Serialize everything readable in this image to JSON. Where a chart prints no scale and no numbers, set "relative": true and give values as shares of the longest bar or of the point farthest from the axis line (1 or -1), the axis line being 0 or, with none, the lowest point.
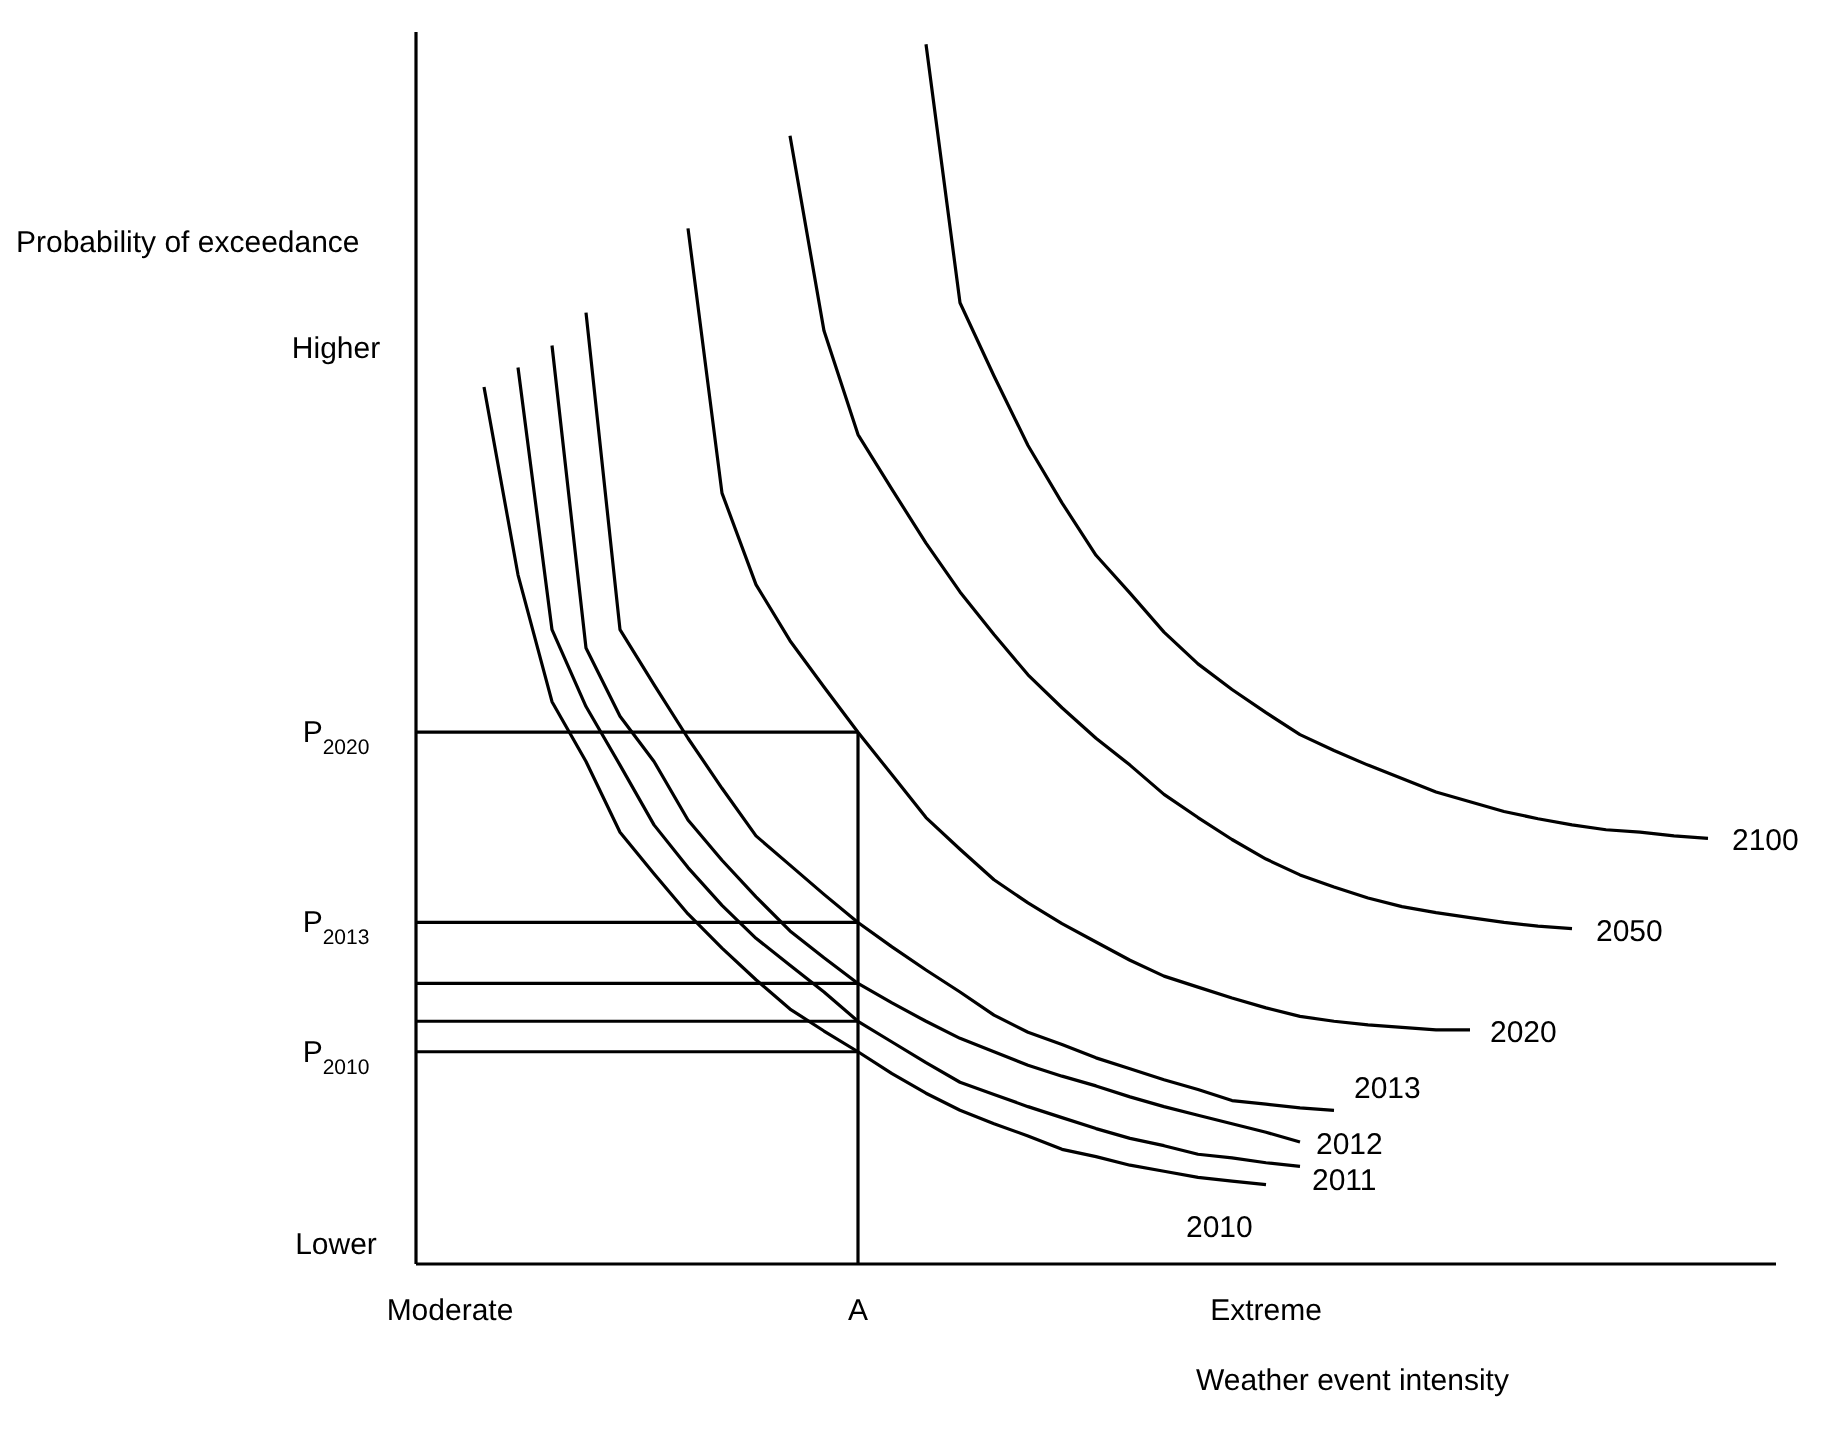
{
  "chart_data": {
    "type": "line",
    "relative": true,
    "xlabel": "Weather event intensity",
    "ylabel": "Probability of exceedance",
    "annotations": [
      "Higher",
      "Lower"
    ],
    "categories": [
      null,
      "Moderate",
      null,
      null,
      null,
      null,
      null,
      null,
      null,
      null,
      null,
      null,
      null,
      "A",
      null,
      null,
      null,
      null,
      null,
      null,
      null,
      null,
      null,
      null,
      null,
      "Extreme",
      null,
      null,
      null,
      null,
      null,
      null,
      null,
      null,
      null,
      null,
      null,
      null,
      null,
      null,
      null
    ],
    "marker": "none",
    "line_style": "solid",
    "ref_lines": [
      {
        "axis": "x",
        "value": "A",
        "color": "#000000"
      },
      {
        "axis": "y",
        "value": 0.436,
        "label": "P$_{2020}$",
        "color": "#000000"
      },
      {
        "axis": "y",
        "value": 0.28,
        "label": "P$_{2013}$",
        "color": "#000000"
      },
      {
        "axis": "y",
        "value": 0.23,
        "color": "#000000"
      },
      {
        "axis": "y",
        "value": 0.199,
        "color": "#000000"
      },
      {
        "axis": "y",
        "value": 0.174,
        "label": "P$_{2010}$",
        "color": "#000000"
      }
    ],
    "series": [
      {
        "name": "2010",
        "color": "#000000",
        "values": [
          null,
          null,
          0.719,
          0.565,
          0.461,
          0.412,
          0.354,
          0.32,
          0.287,
          0.259,
          0.233,
          0.209,
          0.191,
          0.174,
          0.156,
          0.14,
          0.126,
          0.115,
          0.105,
          0.094,
          0.088,
          0.081,
          0.076,
          0.071,
          0.068,
          0.065,
          null,
          null,
          null,
          null,
          null,
          null,
          null,
          null,
          null,
          null,
          null,
          null,
          null,
          null,
          null
        ]
      },
      {
        "name": "2011",
        "color": "#000000",
        "values": [
          null,
          null,
          null,
          0.735,
          0.52,
          0.457,
          0.409,
          0.36,
          0.325,
          0.294,
          0.267,
          0.245,
          0.223,
          0.199,
          0.182,
          0.165,
          0.149,
          0.139,
          0.129,
          0.12,
          0.111,
          0.103,
          0.097,
          0.09,
          0.087,
          0.083,
          0.08,
          null,
          null,
          null,
          null,
          null,
          null,
          null,
          null,
          null,
          null,
          null,
          null,
          null,
          null
        ]
      },
      {
        "name": "2012",
        "color": "#000000",
        "values": [
          null,
          null,
          null,
          null,
          0.753,
          0.505,
          0.449,
          0.412,
          0.364,
          0.331,
          0.301,
          0.273,
          0.251,
          0.23,
          0.214,
          0.199,
          0.185,
          0.174,
          0.163,
          0.154,
          0.146,
          0.137,
          0.129,
          0.122,
          0.115,
          0.108,
          0.1,
          null,
          null,
          null,
          null,
          null,
          null,
          null,
          null,
          null,
          null,
          null,
          null,
          null,
          null
        ]
      },
      {
        "name": "2013",
        "color": "#000000",
        "values": [
          null,
          null,
          null,
          null,
          null,
          0.78,
          0.52,
          0.475,
          0.431,
          0.39,
          0.351,
          0.327,
          0.303,
          0.28,
          0.26,
          0.241,
          0.223,
          0.204,
          0.19,
          0.18,
          0.169,
          0.16,
          0.151,
          0.143,
          0.134,
          0.131,
          0.128,
          0.126,
          null,
          null,
          null,
          null,
          null,
          null,
          null,
          null,
          null,
          null,
          null,
          null,
          null
        ]
      },
      {
        "name": "2020",
        "color": "#000000",
        "values": [
          null,
          null,
          null,
          null,
          null,
          null,
          null,
          null,
          0.849,
          0.632,
          0.557,
          0.511,
          0.473,
          0.436,
          0.401,
          0.366,
          0.34,
          0.315,
          0.296,
          0.279,
          0.264,
          0.249,
          0.236,
          0.227,
          0.218,
          0.21,
          0.203,
          0.199,
          0.196,
          0.194,
          0.192,
          0.192,
          null,
          null,
          null,
          null,
          null,
          null,
          null,
          null,
          null
        ]
      },
      {
        "name": "2050",
        "color": "#000000",
        "values": [
          null,
          null,
          null,
          null,
          null,
          null,
          null,
          null,
          null,
          null,
          null,
          0.925,
          0.765,
          0.68,
          0.635,
          0.591,
          0.551,
          0.516,
          0.483,
          0.456,
          0.431,
          0.409,
          0.385,
          0.366,
          0.348,
          0.332,
          0.319,
          0.309,
          0.3,
          0.293,
          0.288,
          0.284,
          0.28,
          0.277,
          0.275,
          null,
          null,
          null,
          null,
          null,
          null
        ]
      },
      {
        "name": "2100",
        "color": "#000000",
        "values": [
          null,
          null,
          null,
          null,
          null,
          null,
          null,
          null,
          null,
          null,
          null,
          null,
          null,
          null,
          null,
          1,
          0.788,
          0.728,
          0.671,
          0.624,
          0.581,
          0.55,
          0.518,
          0.492,
          0.471,
          0.452,
          0.434,
          0.421,
          0.409,
          0.398,
          0.387,
          0.379,
          0.371,
          0.365,
          0.36,
          0.356,
          0.354,
          0.351,
          0.349,
          null,
          null
        ]
      }
    ]
  }
}
